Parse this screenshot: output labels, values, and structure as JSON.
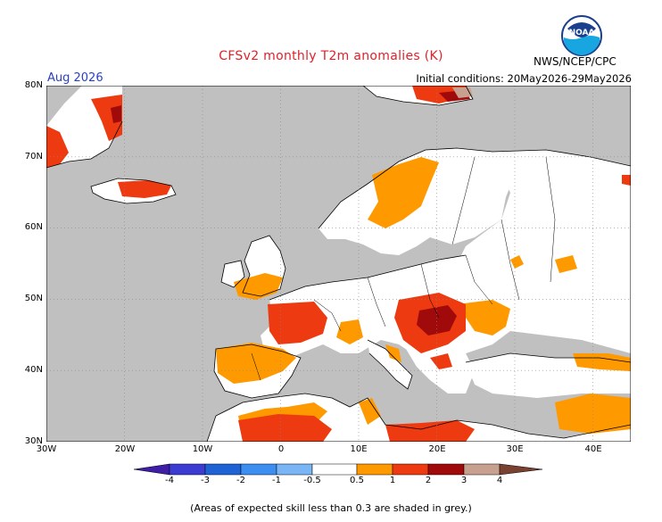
{
  "header": {
    "title": "CFSv2 monthly T2m anomalies (K)",
    "period": "Aug 2026",
    "initial_conditions": "Initial conditions: 20May2026-29May2026",
    "agency": "NWS/NCEP/CPC",
    "logo_text": "NOAA"
  },
  "axes": {
    "lon_ticks": [
      "30W",
      "20W",
      "10W",
      "0",
      "10E",
      "20E",
      "30E",
      "40E"
    ],
    "lat_ticks": [
      "80N",
      "70N",
      "60N",
      "50N",
      "40N",
      "30N"
    ]
  },
  "colorbar": {
    "labels": [
      "-4",
      "-3",
      "-2",
      "-1",
      "-0.5",
      "0.5",
      "1",
      "2",
      "3",
      "4"
    ],
    "colors": [
      "#3e1ea6",
      "#3c3cd2",
      "#1f62d6",
      "#3c8ef0",
      "#7ab6f6",
      "#ffffff",
      "#ff9900",
      "#ee3a10",
      "#a00a0a",
      "#c8a090",
      "#7a4030"
    ]
  },
  "map": {
    "ocean_color": "#c0c0c0",
    "land_color": "#ffffff",
    "grid_color": "#888888",
    "anomaly_colors": {
      "warm1": "#ff9900",
      "warm2": "#ee3a10",
      "warm3": "#a00a0a",
      "warm4": "#c8a090"
    }
  },
  "footnote": "(Areas of expected skill less than 0.3 are shaded in grey.)"
}
